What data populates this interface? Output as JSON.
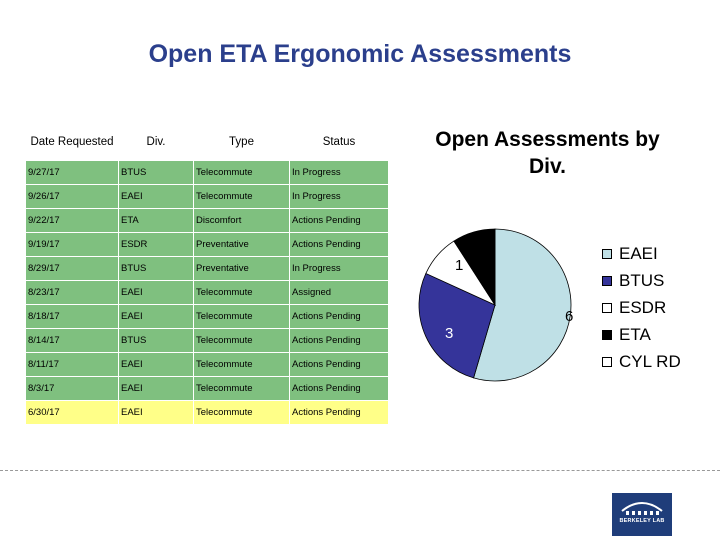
{
  "slide": {
    "title": "Open ETA Ergonomic Assessments"
  },
  "table": {
    "headers": [
      "Date Requested",
      "Div.",
      "Type",
      "Status"
    ],
    "rows": [
      {
        "date": "9/27/17",
        "div": "BTUS",
        "type": "Telecommute",
        "status": "In Progress"
      },
      {
        "date": "9/26/17",
        "div": "EAEI",
        "type": "Telecommute",
        "status": "In Progress"
      },
      {
        "date": "9/22/17",
        "div": "ETA",
        "type": "Discomfort",
        "status": "Actions Pending"
      },
      {
        "date": "9/19/17",
        "div": "ESDR",
        "type": "Preventative",
        "status": "Actions Pending"
      },
      {
        "date": "8/29/17",
        "div": "BTUS",
        "type": "Preventative",
        "status": "In Progress"
      },
      {
        "date": "8/23/17",
        "div": "EAEI",
        "type": "Telecommute",
        "status": "Assigned"
      },
      {
        "date": "8/18/17",
        "div": "EAEI",
        "type": "Telecommute",
        "status": "Actions Pending"
      },
      {
        "date": "8/14/17",
        "div": "BTUS",
        "type": "Telecommute",
        "status": "Actions Pending"
      },
      {
        "date": "8/11/17",
        "div": "EAEI",
        "type": "Telecommute",
        "status": "Actions Pending"
      },
      {
        "date": "8/3/17",
        "div": "EAEI",
        "type": "Telecommute",
        "status": "Actions Pending"
      },
      {
        "date": "6/30/17",
        "div": "EAEI",
        "type": "Telecommute",
        "status": "Actions Pending"
      }
    ],
    "row_colors": [
      "green",
      "green",
      "green",
      "green",
      "green",
      "green",
      "green",
      "green",
      "green",
      "green",
      "yellow"
    ],
    "colors": {
      "green": "#7fc07f",
      "yellow": "#ffff88"
    }
  },
  "chart_data": {
    "type": "pie",
    "title": "Open Assessments by Div.",
    "categories": [
      "EAEI",
      "BTUS",
      "ESDR",
      "ETA",
      "CYL RD"
    ],
    "values": [
      6,
      3,
      1,
      1,
      0
    ],
    "data_labels": [
      "6",
      "3",
      "1",
      "1",
      ""
    ],
    "colors": [
      "#bfe0e6",
      "#35349a",
      "#ffffff",
      "#000000",
      "#ffffff"
    ],
    "legend": "right"
  },
  "logo": {
    "text": "BERKELEY LAB"
  }
}
